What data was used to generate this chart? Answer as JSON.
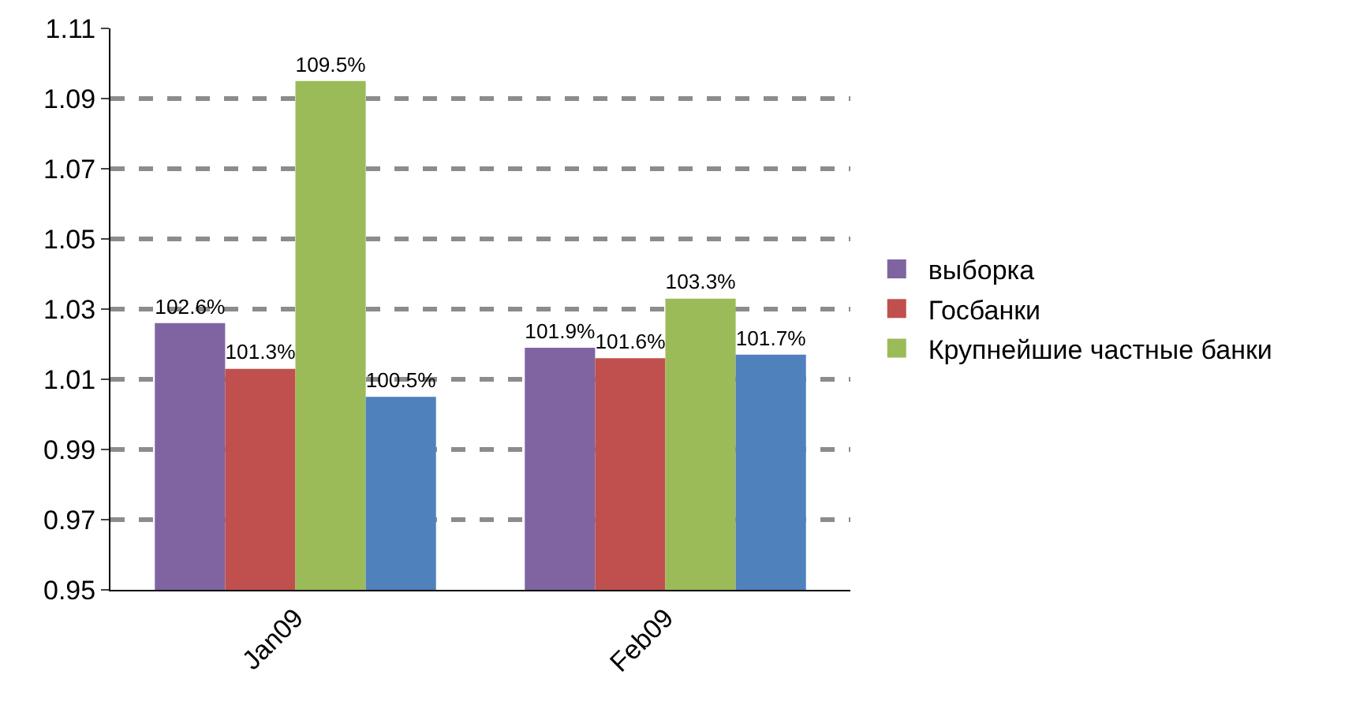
{
  "chart_data": {
    "type": "bar",
    "categories": [
      "Jan09",
      "Feb09"
    ],
    "series": [
      {
        "name": "выборка",
        "color": "#8064a2",
        "values": [
          1.026,
          1.019
        ],
        "value_labels": [
          "102.6%",
          "101.9%"
        ]
      },
      {
        "name": "Госбанки",
        "color": "#c0504d",
        "values": [
          1.013,
          1.016
        ],
        "value_labels": [
          "101.3%",
          "101.6%"
        ]
      },
      {
        "name": "Крупнейшие частные банки",
        "color": "#9bbb59",
        "values": [
          1.095,
          1.033
        ],
        "value_labels": [
          "109.5%",
          "103.3%"
        ]
      },
      {
        "color": "#4f81bd",
        "values": [
          1.005,
          1.017
        ],
        "value_labels": [
          "100.5%",
          "101.7%"
        ]
      }
    ],
    "ylim": [
      0.95,
      1.11
    ],
    "yticks": [
      0.95,
      0.97,
      0.99,
      1.01,
      1.03,
      1.05,
      1.07,
      1.09,
      1.11
    ],
    "grid": "y",
    "legend": "right"
  }
}
